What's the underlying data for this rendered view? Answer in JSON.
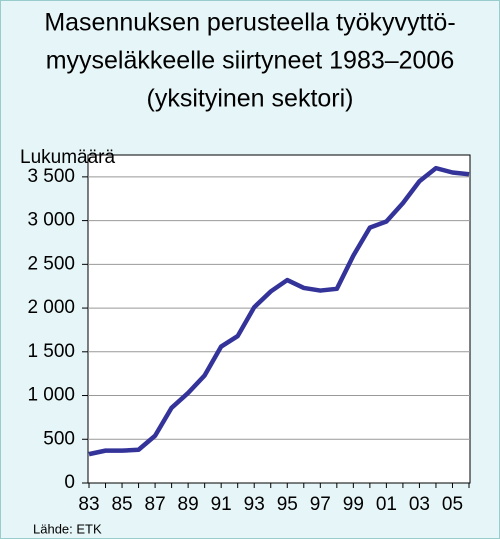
{
  "chart_data": {
    "type": "line",
    "title": [
      "Masennuksen perusteella työkyvyttö-",
      "myyseläkkeelle siirtyneet 1983–2006",
      "(yksityinen sektori)"
    ],
    "ylabel": "Lukumäärä",
    "source": "Lähde: ETK",
    "categories": [
      "83",
      null,
      "85",
      null,
      "87",
      null,
      "89",
      null,
      "91",
      null,
      "93",
      null,
      "95",
      null,
      "97",
      null,
      "99",
      null,
      "01",
      null,
      "03",
      null,
      "05",
      null
    ],
    "values": [
      330,
      370,
      370,
      380,
      540,
      860,
      1030,
      1230,
      1560,
      1680,
      2010,
      2190,
      2320,
      2230,
      2200,
      2220,
      2600,
      2920,
      2990,
      3200,
      3450,
      3600,
      3550,
      3530
    ],
    "color": "#333399",
    "ylim": [
      0,
      3750
    ],
    "yticks": [
      0,
      500,
      {
        "value": 1000,
        "label": "1 000"
      },
      {
        "value": 1500,
        "label": "1 500"
      },
      {
        "value": 2000,
        "label": "2 000"
      },
      {
        "value": 2500,
        "label": "2 500"
      },
      {
        "value": 3000,
        "label": "3 000"
      },
      {
        "value": 3500,
        "label": "3 500"
      }
    ],
    "grid": true
  }
}
